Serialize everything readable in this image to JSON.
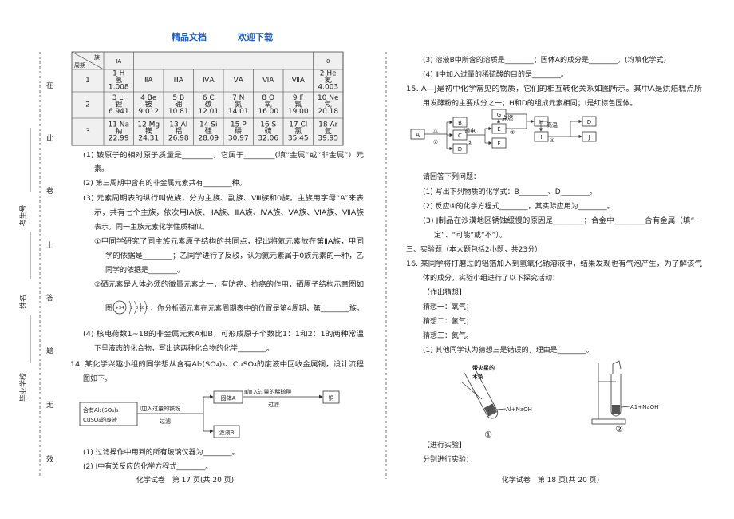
{
  "header": {
    "left": "精品文档",
    "right": "欢迎下载"
  },
  "margin": {
    "seal_chars": [
      "在",
      "此",
      "卷",
      "上",
      "答",
      "题",
      "无",
      "效"
    ],
    "fields": [
      "考生号",
      "姓名",
      "毕业学校"
    ]
  },
  "periodic_table": {
    "corner_top": "族",
    "corner_bottom": "周期",
    "header": [
      "ⅠA",
      "0"
    ],
    "rows": [
      {
        "period": "1",
        "cells": [
          [
            "1 H",
            "氢",
            "1.008"
          ],
          [
            "ⅡA"
          ],
          [
            "ⅢA"
          ],
          [
            "ⅣA"
          ],
          [
            "ⅤA"
          ],
          [
            "ⅥA"
          ],
          [
            "ⅦA"
          ],
          [
            "2 He",
            "氦",
            "4.003"
          ]
        ]
      },
      {
        "period": "2",
        "cells": [
          [
            "3 Li",
            "锂",
            "6.941"
          ],
          [
            "4 Be",
            "铍",
            "9.012"
          ],
          [
            "5 B",
            "硼",
            "10.81"
          ],
          [
            "6 C",
            "碳",
            "12.01"
          ],
          [
            "7 N",
            "氮",
            "14.01"
          ],
          [
            "8 O",
            "氧",
            "16.00"
          ],
          [
            "9 F",
            "氟",
            "19.00"
          ],
          [
            "10 Ne",
            "氖",
            "20.18"
          ]
        ]
      },
      {
        "period": "3",
        "cells": [
          [
            "11 Na",
            "钠",
            "22.99"
          ],
          [
            "12 Mg",
            "镁",
            "24.31"
          ],
          [
            "13 Al",
            "铝",
            "26.98"
          ],
          [
            "14 Si",
            "硅",
            "28.09"
          ],
          [
            "15 P",
            "磷",
            "30.97"
          ],
          [
            "16 S",
            "硫",
            "32.06"
          ],
          [
            "17 Cl",
            "氯",
            "35.45"
          ],
          [
            "18 Ar",
            "氩",
            "39.95"
          ]
        ]
      }
    ]
  },
  "left_lines": [
    "(1) 铍原子的相对原子质量是________，它属于________(填“金属”或“非金属”）元",
    "素。",
    "(2) 第三周期中含有的非金属元素共有________种。",
    "(3) 元素周期表的纵行叫做族，分为主族、副族、Ⅷ族和0族。主族用字母“A”来表",
    "示，共有七个主族，依次用ⅠA族、ⅡA族、ⅢA族、ⅣA族、ⅤA族、ⅥA族、ⅦA族",
    "表示。同一主族元素化学性质相似。",
    "①甲同学研究了同主族元素原子结构的共同点，提出将氦元素放在第ⅡA族，甲同",
    "学的依据是________；乙同学进行了反驳，认为氦元素属于0族元素的一种，乙",
    "同学的依据是________。",
    "②硒元素是人体必须的微量元素之一，有防癌、抗癌的作用，硒原子结构示意图如",
    "图",
    "，你分析硒元素在元素周期表中的位置是第4周期，第________族。",
    "(4) 核电荷数1~18的非金属元素A和B，可形成原子个数比1：1和2：1的两种常温",
    "下呈液态的化合物，写出这两种化合物的化学________。",
    "14. 某化学兴趣小组的同学想从含有Al₂(SO₄)₃、CuSO₄的废液中回收金属铜，设计流程",
    "图如下。",
    "(1) 过滤操作中用到的所有玻璃仪器为________。",
    "(2) Ⅰ中有关反应的化学方程式________。"
  ],
  "se_diagram": {
    "nucleus": "+34",
    "shells": [
      "2",
      "8",
      "18",
      "6"
    ]
  },
  "flow": {
    "start": [
      "含有Al₂(SO₄)₃",
      "CuSO₄的废液"
    ],
    "step1": [
      "Ⅰ加入过量的铁粉",
      "过滤"
    ],
    "solid": "固体A",
    "step2": [
      "Ⅱ加入过量的稀硫酸",
      "过滤"
    ],
    "product": "铜",
    "filtrate": "滤液B"
  },
  "right_lines": [
    "(3) 溶液B中所含的溶质是________；固体A的成分是________。(均填化学式)",
    "(4) Ⅱ中加入过量的稀硫酸的目的是________。",
    "15. A—J是初中化学常见的物质，它们的相互转化关系如图所示。其中A是烘焙糕点所",
    "用发酵粉的主要成分之一；H和D的组成元素相同；I是红棕色固体。",
    "请回答下列问题：",
    "(1) 写出下列物质的化学式：B________、D________。",
    "(2) 反应④的化学方程式________，其实际应用为________。",
    "(3) J制品在沙漠地区锈蚀缓慢的原因是________；合金中________含有金属（填“一",
    "定”、“可能”或“不”）。",
    "三、实验题（本大题包括2小题，共23分）",
    "16. 某同学将打磨过的铝箔加入到氢氧化钠溶液中，结果发现也有气泡产生，为了解该气",
    "体的成分，实验小组进行了以下探究活动：",
    "【作出猜想】",
    "猜想一：氧气；",
    "猜想二：氢气；",
    "猜想三：氮气。",
    "(1) 其他同学认为猜想三是错误的，理由是________。",
    "【进行实验】",
    "分别进行实验："
  ],
  "relation_diagram": {
    "nodes": [
      "A",
      "B",
      "C",
      "D",
      "E",
      "F",
      "G",
      "H",
      "I",
      "D",
      "J"
    ],
    "conditions": [
      "△",
      "①",
      "通电",
      "②",
      "点燃",
      "③",
      "高温",
      "④"
    ]
  },
  "apparatus": {
    "one": {
      "label": [
        "带火星的",
        "木条"
      ],
      "reagent": "Al+NaOH",
      "number": "①"
    },
    "two": {
      "reagent": "A1+NaOH",
      "number": "②"
    }
  },
  "footers": [
    "化学试卷　第 17 页(共 20 页)",
    "化学试卷　第 18 页(共 20 页)"
  ]
}
